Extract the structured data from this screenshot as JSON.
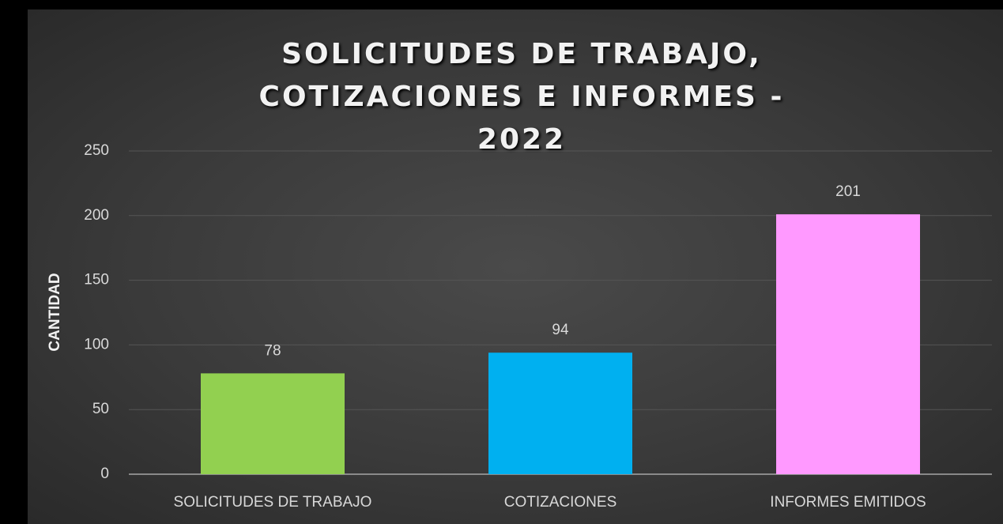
{
  "chart_data": {
    "type": "bar",
    "title": "SOLICITUDES DE TRABAJO, COTIZACIONES E INFORMES - 2022",
    "y_label": "CANTIDAD",
    "categories": [
      "SOLICITUDES DE TRABAJO",
      "COTIZACIONES",
      "INFORMES EMITIDOS"
    ],
    "values": [
      78,
      94,
      201
    ],
    "colors": [
      "#92d050",
      "#00b0f0",
      "#ff99ff"
    ],
    "ylim": [
      0,
      250
    ],
    "yticks": [
      0,
      50,
      100,
      150,
      200,
      250
    ],
    "grid": true
  }
}
